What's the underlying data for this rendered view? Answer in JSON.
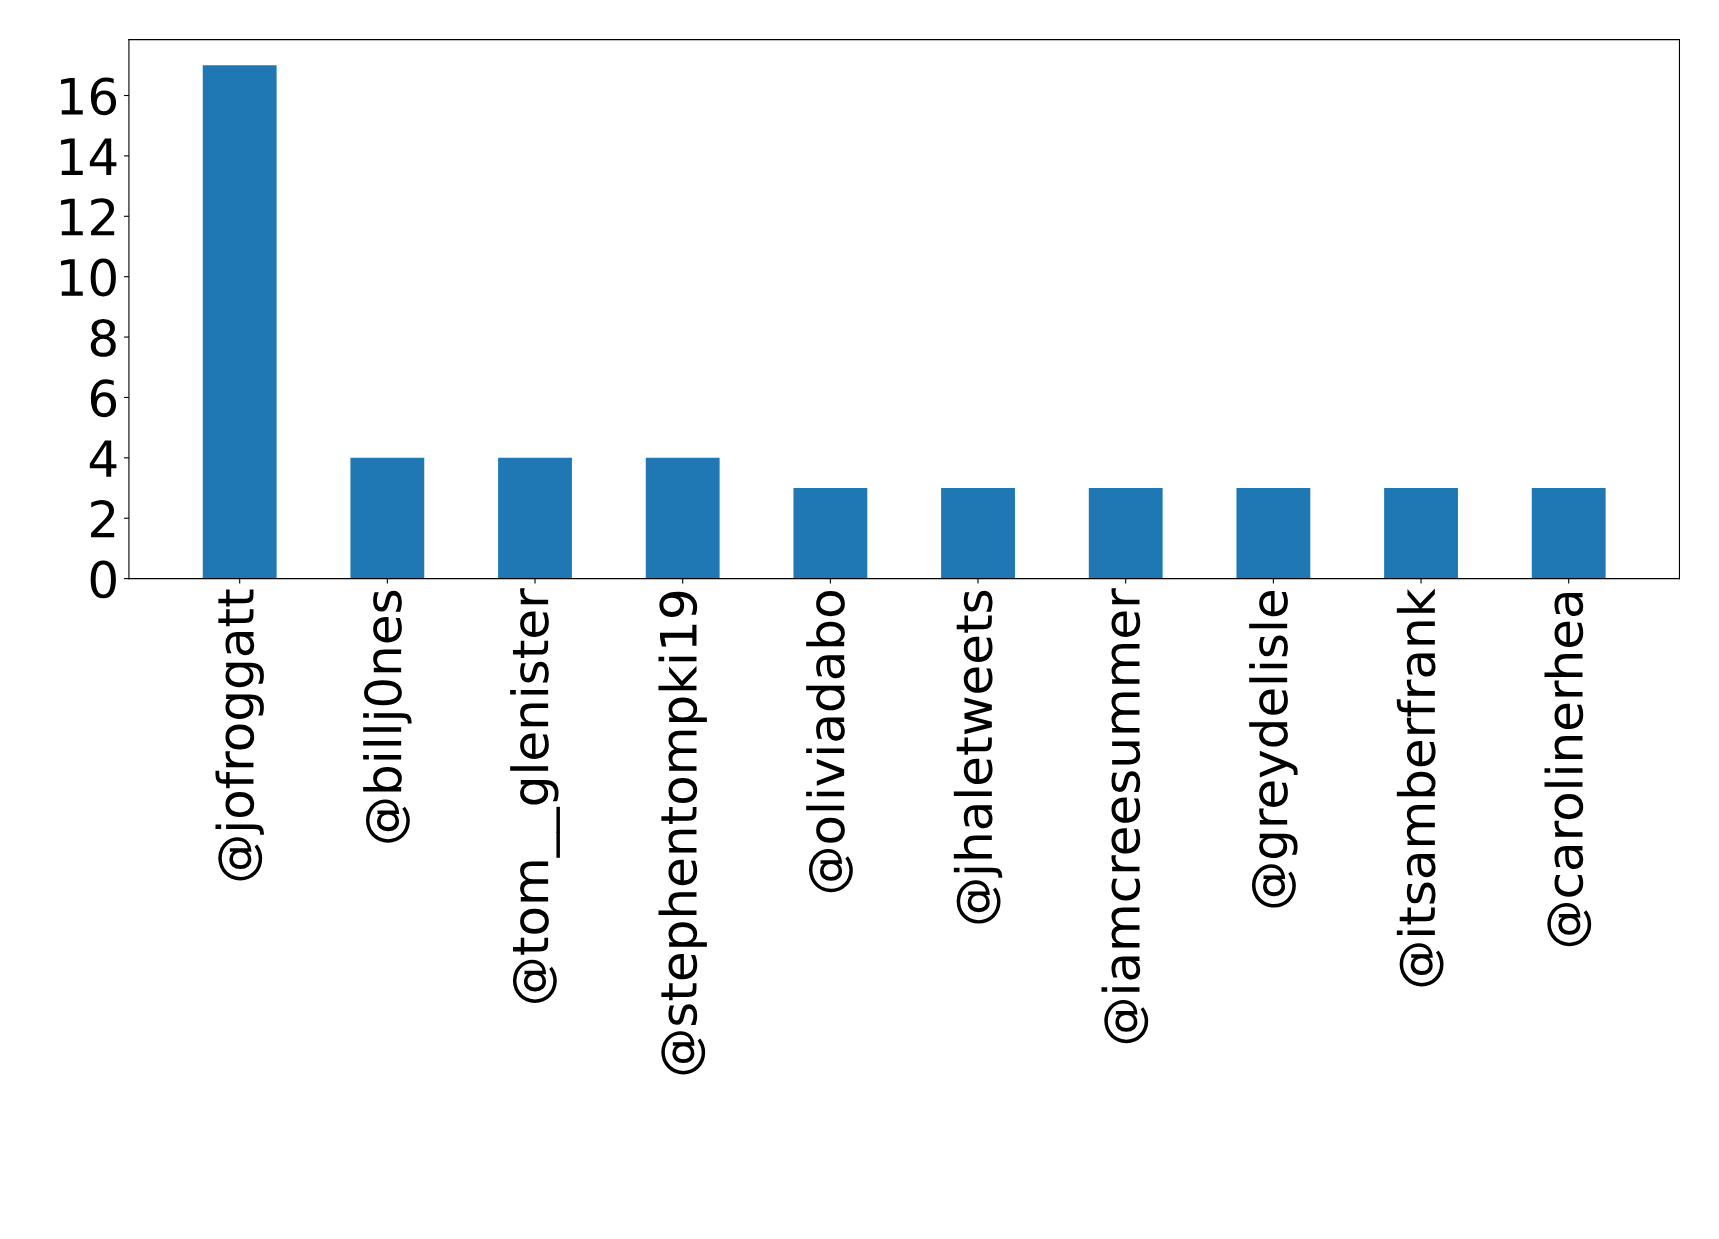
{
  "chart_data": {
    "type": "bar",
    "categories": [
      "@jofroggatt",
      "@billj0nes",
      "@tom__glenister",
      "@stephentompki19",
      "@oliviadabo",
      "@jhaletweets",
      "@iamcreesummer",
      "@greydelisle",
      "@itsamberfrank",
      "@carolinerhea"
    ],
    "values": [
      17,
      4,
      4,
      4,
      3,
      3,
      3,
      3,
      3,
      3
    ],
    "color": "#1f77b4",
    "ylim": [
      0,
      17.85
    ],
    "yticks": [
      0,
      2,
      4,
      6,
      8,
      10,
      12,
      14,
      16
    ],
    "grid": false,
    "legend": false
  }
}
